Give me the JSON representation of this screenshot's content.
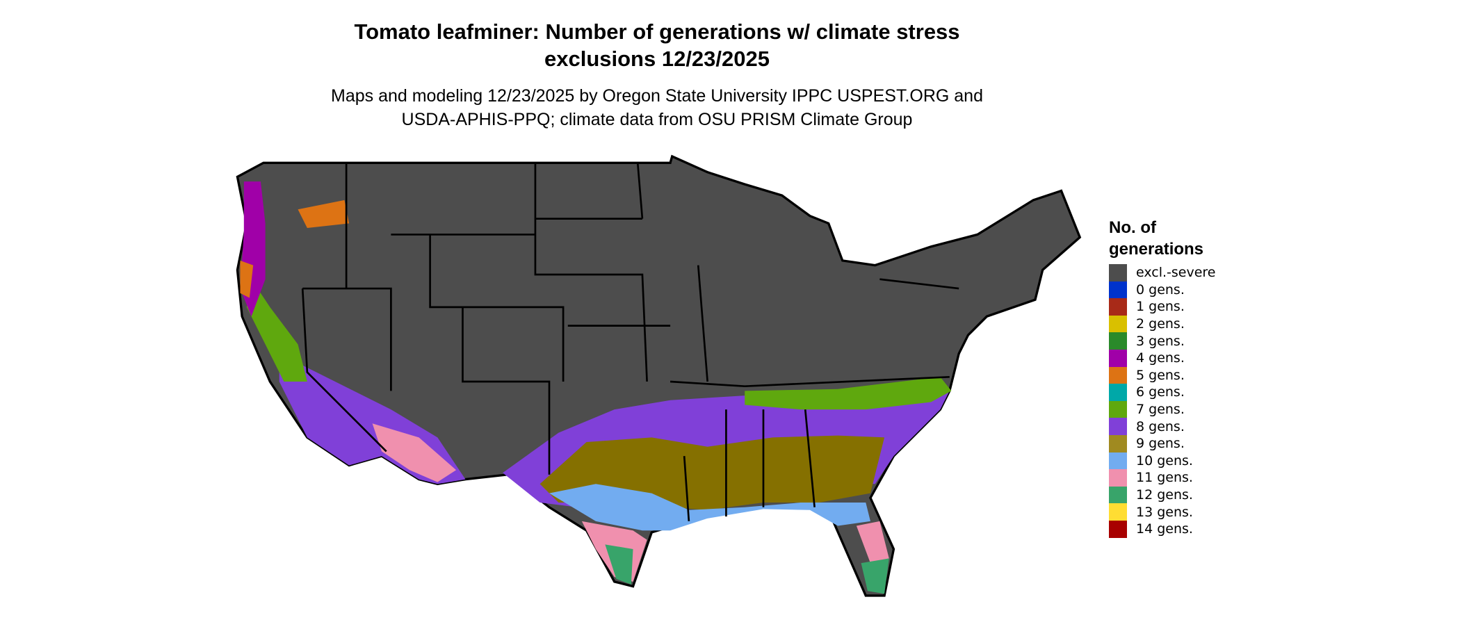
{
  "title": {
    "line1": "Tomato leafminer: Number of generations w/ climate stress",
    "line2": "exclusions 12/23/2025"
  },
  "subtitle": {
    "line1": "Maps and modeling 12/23/2025 by Oregon State University IPPC USPEST.ORG and",
    "line2": "USDA-APHIS-PPQ; climate data from OSU PRISM Climate Group"
  },
  "legend": {
    "title_line1": "No. of",
    "title_line2": "generations",
    "items": [
      {
        "label": "excl.-severe",
        "color": "#4d4d4d"
      },
      {
        "label": "0 gens.",
        "color": "#0033cc"
      },
      {
        "label": "1 gens.",
        "color": "#a82a18"
      },
      {
        "label": "2 gens.",
        "color": "#d9c000"
      },
      {
        "label": "3 gens.",
        "color": "#2a8a2a"
      },
      {
        "label": "4 gens.",
        "color": "#a000a8"
      },
      {
        "label": "5 gens.",
        "color": "#dd7314"
      },
      {
        "label": "6 gens.",
        "color": "#00a8a8"
      },
      {
        "label": "7 gens.",
        "color": "#5fa80e"
      },
      {
        "label": "8 gens.",
        "color": "#8040d8"
      },
      {
        "label": "9 gens.",
        "color": "#a08a20"
      },
      {
        "label": "10 gens.",
        "color": "#72acf0"
      },
      {
        "label": "11 gens.",
        "color": "#f090ae"
      },
      {
        "label": "12 gens.",
        "color": "#38a46a"
      },
      {
        "label": "13 gens.",
        "color": "#ffdd33"
      },
      {
        "label": "14 gens.",
        "color": "#a80000"
      }
    ]
  }
}
